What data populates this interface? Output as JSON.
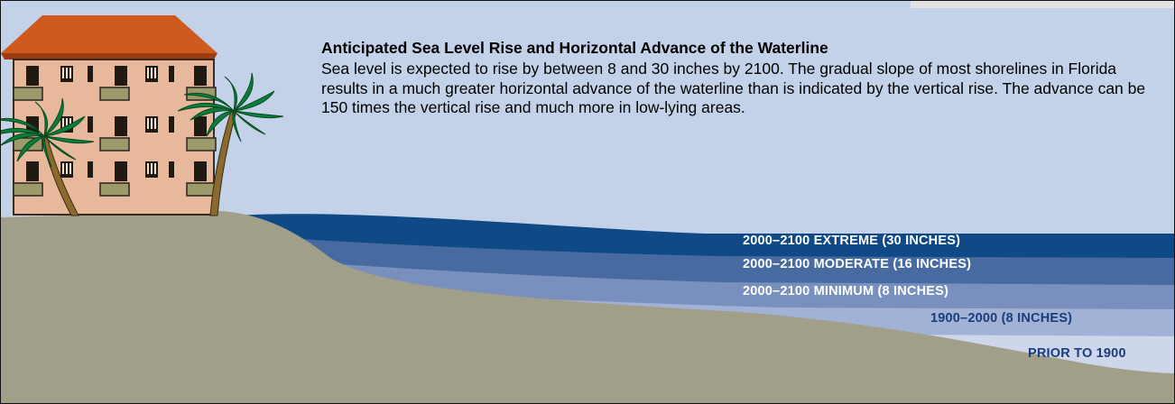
{
  "title": "Anticipated Sea Level Rise and Horizontal Advance of the Waterline",
  "description": "Sea level is expected to rise by between 8 and 30 inches by 2100. The gradual slope of most shorelines in Florida results in a much greater horizontal advance of the waterline than is indicated by the vertical rise. The advance can be 150 times the vertical rise and much more in low-lying areas.",
  "levels": [
    {
      "label": "2000–2100 EXTREME (30 INCHES)",
      "color": "#104a86"
    },
    {
      "label": "2000–2100 MODERATE (16 INCHES)",
      "color": "#476ba1"
    },
    {
      "label": "2000–2100 MINIMUM (8 INCHES)",
      "color": "#7990bf"
    },
    {
      "label": "1900–2000 (8 INCHES)",
      "color": "#a1b2d6"
    },
    {
      "label": "PRIOR TO 1900",
      "color": "#cdd6ea"
    }
  ],
  "colors": {
    "sky": "#c4d2e9",
    "land": "#a19f89",
    "building": "#e7b89b",
    "roof": "#cf5a1f",
    "palm_trunk": "#8b6a2f",
    "palm_leaves": "#0c7d3a"
  }
}
